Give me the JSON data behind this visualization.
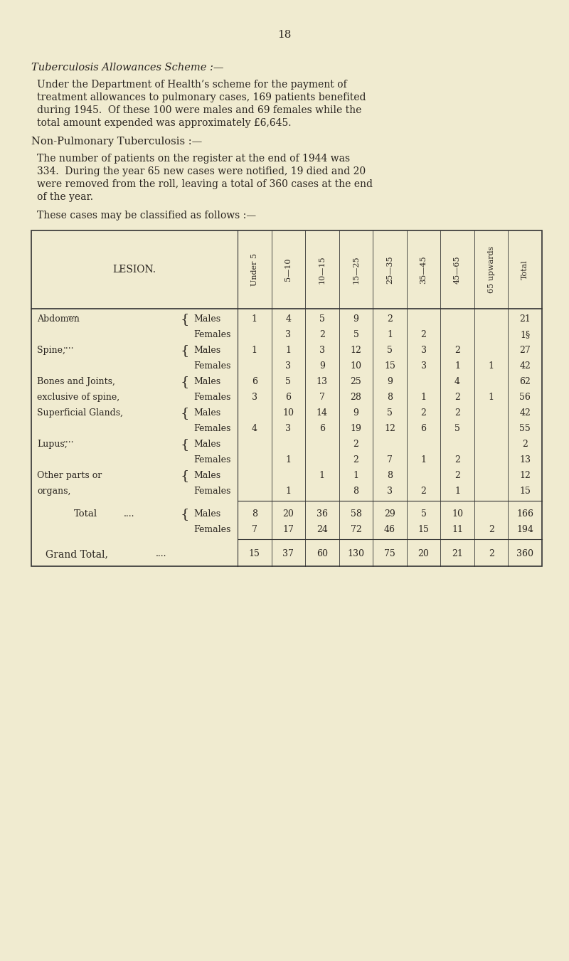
{
  "bg_color": "#f0ebd0",
  "text_color": "#2a2520",
  "page_number": "18",
  "title1": "Tuberculosis Allowances Scheme :—",
  "para1_lines": [
    "Under the Department of Health’s scheme for the payment of",
    "treatment allowances to pulmonary cases, 169 patients benefited",
    "during 1945.  Of these 100 were males and 69 females while the",
    "total amount expended was approximately £6,645."
  ],
  "title2": "Non-Pulmonary Tuberculosis :—",
  "para2_lines": [
    "The number of patients on the register at the end of 1944 was",
    "334.  During the year 65 new cases were notified, 19 died and 20",
    "were removed from the roll, leaving a total of 360 cases at the end",
    "of the year."
  ],
  "para3": "These cases may be classified as follows :—",
  "col_headers": [
    "Under 5",
    "5—10",
    "10—15",
    "15—25",
    "25—35",
    "35—45",
    "45—65",
    "65 upwards",
    "Total"
  ],
  "lesion_col_header": "LESION.",
  "rows": [
    {
      "lesion": "Abdomen    ....",
      "sex": "Males",
      "vals": [
        "1",
        "4",
        "5",
        "9",
        "2",
        "",
        "",
        "",
        "21"
      ]
    },
    {
      "lesion": "",
      "sex": "Females",
      "vals": [
        "",
        "3",
        "2",
        "5",
        "1",
        "2",
        "",
        "",
        "1§"
      ]
    },
    {
      "lesion": "Spine,    ....",
      "sex": "Males",
      "vals": [
        "1",
        "1",
        "3",
        "12",
        "5",
        "3",
        "2",
        "",
        "27"
      ]
    },
    {
      "lesion": "",
      "sex": "Females",
      "vals": [
        "",
        "3",
        "9",
        "10",
        "15",
        "3",
        "1",
        "1",
        "42"
      ]
    },
    {
      "lesion": "Bones and Joints,",
      "sex": "Males",
      "vals": [
        "6",
        "5",
        "13",
        "25",
        "9",
        "",
        "4",
        "",
        "62"
      ]
    },
    {
      "lesion": "exclusive of spine,",
      "sex": "Females",
      "vals": [
        "3",
        "6",
        "7",
        "28",
        "8",
        "1",
        "2",
        "1",
        "56"
      ]
    },
    {
      "lesion": "Superficial Glands,",
      "sex": "Males",
      "vals": [
        "",
        "10",
        "14",
        "9",
        "5",
        "2",
        "2",
        "",
        "42"
      ]
    },
    {
      "lesion": "",
      "sex": "Females",
      "vals": [
        "4",
        "3",
        "6",
        "19",
        "12",
        "6",
        "5",
        "",
        "55"
      ]
    },
    {
      "lesion": "Lupus,    ....",
      "sex": "Males",
      "vals": [
        "",
        "",
        "",
        "2",
        "",
        "",
        "",
        "",
        "2"
      ]
    },
    {
      "lesion": "",
      "sex": "Females",
      "vals": [
        "",
        "1",
        "",
        "2",
        "7",
        "1",
        "2",
        "",
        "13"
      ]
    },
    {
      "lesion": "Other parts or",
      "sex": "Males",
      "vals": [
        "",
        "",
        "1",
        "1",
        "8",
        "",
        "2",
        "",
        "12"
      ]
    },
    {
      "lesion": "organs,",
      "sex": "Females",
      "vals": [
        "",
        "1",
        "",
        "8",
        "3",
        "2",
        "1",
        "",
        "15"
      ]
    }
  ],
  "total_males": [
    "8",
    "20",
    "36",
    "58",
    "29",
    "5",
    "10",
    "",
    "166"
  ],
  "total_females": [
    "7",
    "17",
    "24",
    "72",
    "46",
    "15",
    "11",
    "2",
    "194"
  ],
  "grand_total": [
    "15",
    "37",
    "60",
    "130",
    "75",
    "20",
    "21",
    "2",
    "360"
  ]
}
